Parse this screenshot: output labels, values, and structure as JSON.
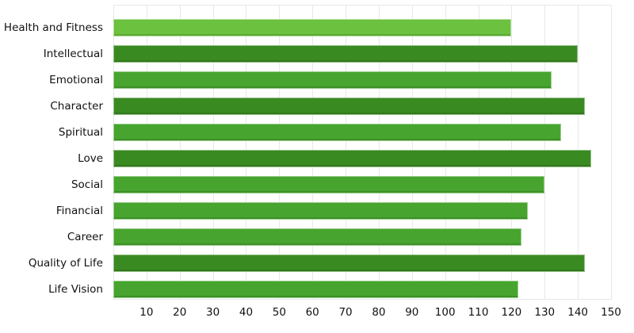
{
  "chart_data": {
    "type": "bar",
    "orientation": "horizontal",
    "categories": [
      "Health and Fitness",
      "Intellectual",
      "Emotional",
      "Character",
      "Spiritual",
      "Love",
      "Social",
      "Financial",
      "Career",
      "Quality of Life",
      "Life Vision"
    ],
    "values": [
      120,
      140,
      132,
      142,
      135,
      144,
      130,
      125,
      123,
      142,
      122
    ],
    "bar_colors": [
      "#6cc13e",
      "#3a8a22",
      "#47a52f",
      "#3a8a22",
      "#47a52f",
      "#3a8a22",
      "#47a52f",
      "#47a52f",
      "#47a52f",
      "#3a8a22",
      "#47a52f"
    ],
    "palette": {
      "light_green": "#6cc13e",
      "medium_green": "#47a52f",
      "dark_green": "#3a8a22"
    },
    "xticks": [
      10,
      20,
      30,
      40,
      50,
      60,
      70,
      80,
      90,
      100,
      110,
      120,
      130,
      140,
      150
    ],
    "xlim": [
      0,
      150
    ],
    "grid": true,
    "legend": false,
    "grid_color": "#e8e8e8",
    "background_color": "#ffffff",
    "text_color": "#111111"
  }
}
